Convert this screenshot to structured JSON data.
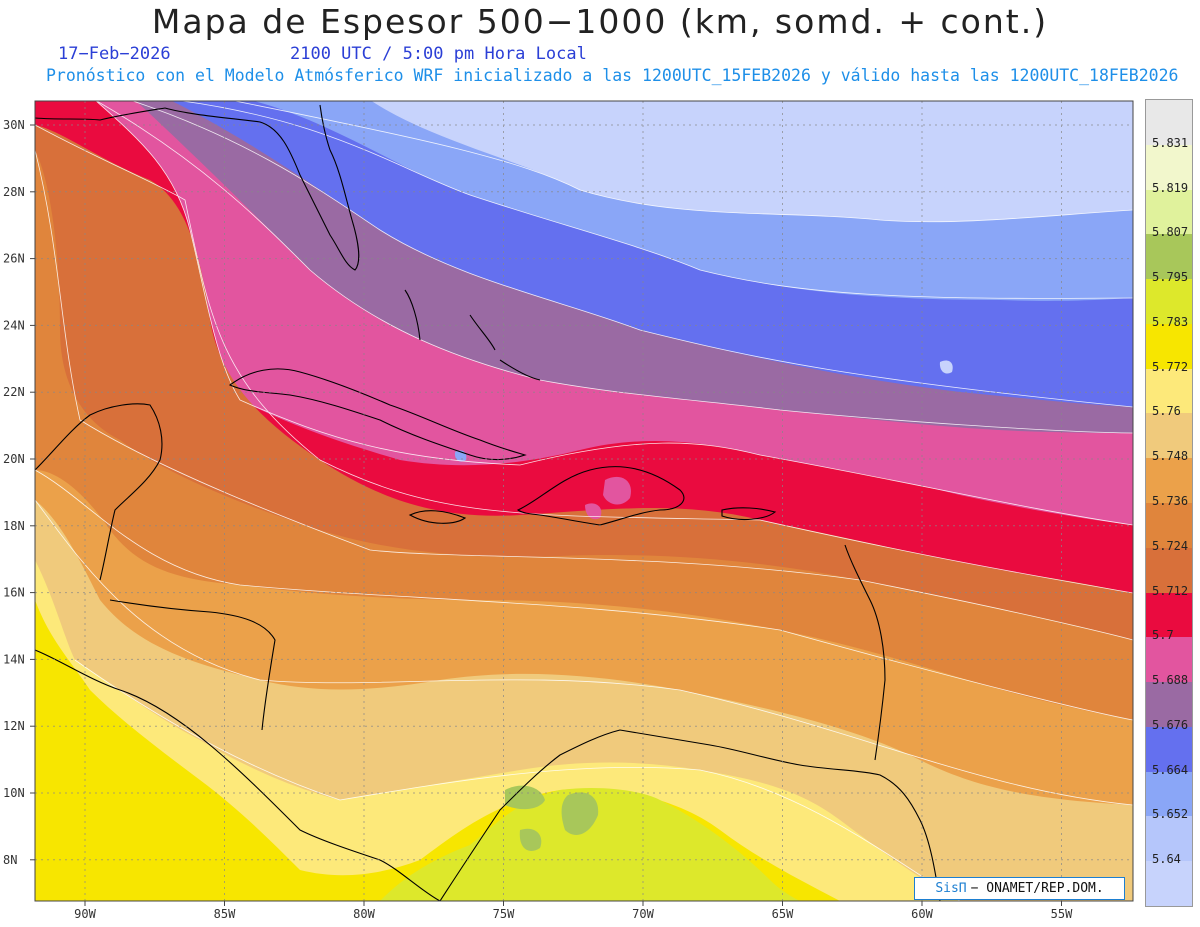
{
  "header": {
    "title": "Mapa de Espesor 500−1000 (km, somd. + cont.)",
    "date": "17−Feb−2026",
    "time": "2100 UTC / 5:00 pm Hora Local",
    "forecast_info": "Pronóstico con el Modelo Atmósferico WRF inicializado a las 1200UTC_15FEB2026 y válido hasta las  1200UTC_18FEB2026"
  },
  "map": {
    "lat_labels": [
      "30N",
      "28N",
      "26N",
      "24N",
      "22N",
      "20N",
      "18N",
      "16N",
      "14N",
      "12N",
      "10N",
      "8N"
    ],
    "lon_labels": [
      "90W",
      "85W",
      "80W",
      "75W",
      "70W",
      "65W",
      "60W",
      "55W"
    ],
    "lat_values": [
      30,
      28,
      26,
      24,
      22,
      20,
      18,
      16,
      14,
      12,
      10,
      8
    ],
    "lon_values": [
      -90,
      -85,
      -80,
      -75,
      -70,
      -65,
      -60,
      -55
    ]
  },
  "colorbar": {
    "labels": [
      "5.831",
      "5.819",
      "5.807",
      "5.795",
      "5.783",
      "5.772",
      "5.76",
      "5.748",
      "5.736",
      "5.724",
      "5.712",
      "5.7",
      "5.688",
      "5.676",
      "5.664",
      "5.652",
      "5.64"
    ],
    "colors": [
      "#e8e8e8",
      "#f2f7cc",
      "#e0f29c",
      "#a8c75a",
      "#dde82b",
      "#f7e600",
      "#fde97a",
      "#f0ca7c",
      "#eba14a",
      "#e0853c",
      "#d8703a",
      "#ea0b3f",
      "#e2559f",
      "#9a6aa3",
      "#6470ef",
      "#8aa6f7",
      "#b5c6fb",
      "#c7d3fc"
    ]
  },
  "credit": {
    "logo_text": "SisΠ",
    "text": "− ONAMET/REP.DOM."
  }
}
